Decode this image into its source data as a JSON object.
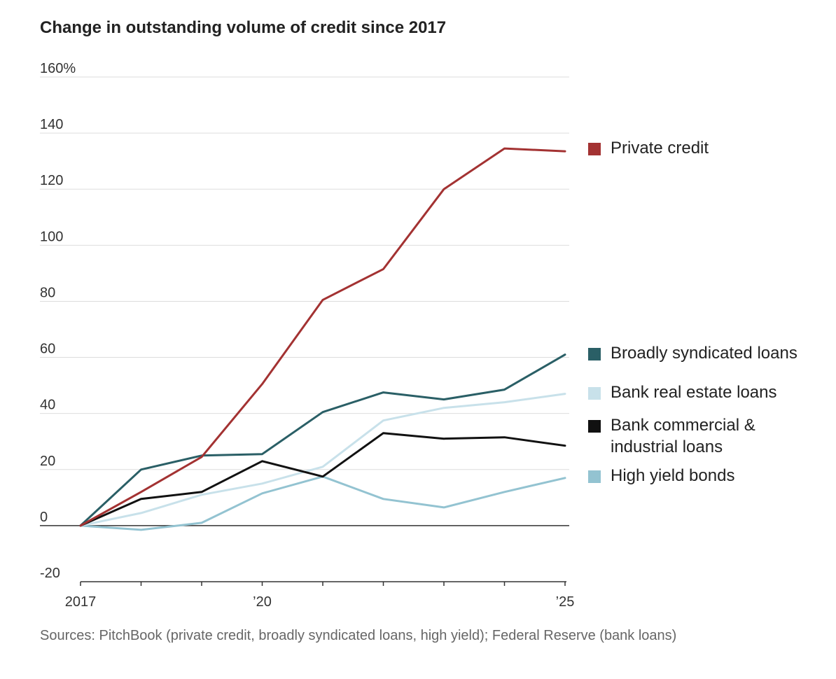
{
  "chart_data": {
    "type": "line",
    "title": "Change in outstanding volume of credit since 2017",
    "xlabel": "",
    "ylabel": "",
    "x": [
      2017,
      2018,
      2019,
      2020,
      2021,
      2022,
      2023,
      2024,
      2025
    ],
    "xlim": [
      2017,
      2025
    ],
    "ylim": [
      -20,
      160
    ],
    "x_ticks": [
      {
        "value": 2017,
        "label": "2017"
      },
      {
        "value": 2020,
        "label": "’20"
      },
      {
        "value": 2025,
        "label": "’25"
      }
    ],
    "y_ticks": [
      {
        "value": 160,
        "label": "160%"
      },
      {
        "value": 140,
        "label": "140"
      },
      {
        "value": 120,
        "label": "120"
      },
      {
        "value": 100,
        "label": "100"
      },
      {
        "value": 80,
        "label": "80"
      },
      {
        "value": 60,
        "label": "60"
      },
      {
        "value": 40,
        "label": "40"
      },
      {
        "value": 20,
        "label": "20"
      },
      {
        "value": 0,
        "label": "0"
      },
      {
        "value": -20,
        "label": "-20"
      }
    ],
    "grid": true,
    "series": [
      {
        "id": "private-credit",
        "name": "Private credit",
        "color": "#a33232",
        "values": [
          0,
          12,
          24.5,
          50.5,
          80.5,
          91.5,
          120,
          134.5,
          133.5
        ]
      },
      {
        "id": "broadly-syndicated-loans",
        "name": "Broadly syndicated loans",
        "color": "#2a5f66",
        "values": [
          0,
          20,
          25,
          25.5,
          40.5,
          47.5,
          45,
          48.5,
          61
        ]
      },
      {
        "id": "bank-real-estate-loans",
        "name": "Bank real estate loans",
        "color": "#c8e1ea",
        "values": [
          0,
          4.5,
          11,
          15,
          21,
          37.5,
          42,
          44,
          47
        ]
      },
      {
        "id": "bank-commercial-industrial-loans",
        "name": "Bank commercial & industrial loans",
        "legend_lines": [
          "Bank commercial &",
          "industrial loans"
        ],
        "color": "#111111",
        "values": [
          0,
          9.5,
          12,
          23,
          17.5,
          33,
          31,
          31.5,
          28.5
        ]
      },
      {
        "id": "high-yield-bonds",
        "name": "High yield bonds",
        "color": "#93c3d1",
        "values": [
          0,
          -1.5,
          1,
          11.5,
          17.5,
          9.5,
          6.5,
          12,
          17
        ]
      }
    ],
    "source": "Sources: PitchBook (private credit, broadly syndicated loans, high yield); Federal Reserve (bank loans)"
  }
}
